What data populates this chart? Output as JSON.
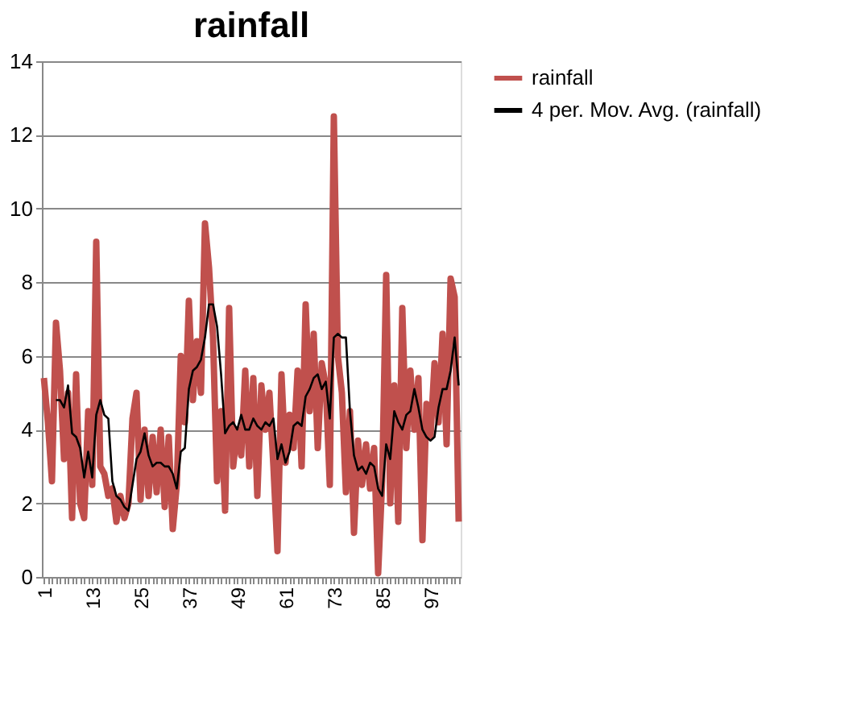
{
  "chart_data": {
    "type": "line",
    "title": "rainfall",
    "legend": "right",
    "grid": "y",
    "ylim": [
      0,
      14
    ],
    "yticks": [
      0,
      2,
      4,
      6,
      8,
      10,
      12,
      14
    ],
    "categories": [
      "1",
      null,
      null,
      null,
      null,
      null,
      null,
      null,
      null,
      null,
      null,
      null,
      "13",
      null,
      null,
      null,
      null,
      null,
      null,
      null,
      null,
      null,
      null,
      null,
      "25",
      null,
      null,
      null,
      null,
      null,
      null,
      null,
      null,
      null,
      null,
      null,
      "37",
      null,
      null,
      null,
      null,
      null,
      null,
      null,
      null,
      null,
      null,
      null,
      "49",
      null,
      null,
      null,
      null,
      null,
      null,
      null,
      null,
      null,
      null,
      null,
      "61",
      null,
      null,
      null,
      null,
      null,
      null,
      null,
      null,
      null,
      null,
      null,
      "73",
      null,
      null,
      null,
      null,
      null,
      null,
      null,
      null,
      null,
      null,
      null,
      "85",
      null,
      null,
      null,
      null,
      null,
      null,
      null,
      null,
      null,
      null,
      null,
      "97",
      null,
      null,
      null,
      null,
      null,
      null,
      null
    ],
    "series": [
      {
        "name": "rainfall",
        "color": "#c0504d",
        "values": [
          5.4,
          4.2,
          2.6,
          6.9,
          5.6,
          3.2,
          5.0,
          1.6,
          5.5,
          2.0,
          1.6,
          4.5,
          2.5,
          9.1,
          3.0,
          2.8,
          2.2,
          2.4,
          1.5,
          2.2,
          1.6,
          2.0,
          4.3,
          5.0,
          2.1,
          4.0,
          2.2,
          3.8,
          2.3,
          4.0,
          1.9,
          3.8,
          1.3,
          2.5,
          6.0,
          4.2,
          7.5,
          4.8,
          6.4,
          5.0,
          9.6,
          8.4,
          6.5,
          2.6,
          4.5,
          1.8,
          7.3,
          3.0,
          4.0,
          3.3,
          5.6,
          3.0,
          5.4,
          2.2,
          5.2,
          4.0,
          5.0,
          3.0,
          0.7,
          5.5,
          3.1,
          4.4,
          3.5,
          5.6,
          3.0,
          7.4,
          4.5,
          6.6,
          3.5,
          5.8,
          5.2,
          2.5,
          12.5,
          6.0,
          5.0,
          2.3,
          4.5,
          1.2,
          3.7,
          2.5,
          3.6,
          2.4,
          3.5,
          0.1,
          2.6,
          8.2,
          2.0,
          5.2,
          1.5,
          7.3,
          3.5,
          5.6,
          4.0,
          5.4,
          1.0,
          4.7,
          3.8,
          5.8,
          4.2,
          6.6,
          3.6,
          8.1,
          7.6,
          1.5
        ]
      },
      {
        "name": "4 per. Mov. Avg. (rainfall)",
        "color": "#000000",
        "values": [
          null,
          null,
          null,
          4.8,
          4.8,
          4.6,
          5.2,
          3.9,
          3.8,
          3.5,
          2.7,
          3.4,
          2.7,
          4.4,
          4.8,
          4.4,
          4.3,
          2.6,
          2.2,
          2.1,
          1.9,
          1.8,
          2.5,
          3.2,
          3.4,
          3.9,
          3.3,
          3.0,
          3.1,
          3.1,
          3.0,
          3.0,
          2.8,
          2.4,
          3.4,
          3.5,
          5.1,
          5.6,
          5.7,
          5.9,
          6.5,
          7.4,
          7.4,
          6.8,
          5.5,
          3.9,
          4.1,
          4.2,
          4.0,
          4.4,
          4.0,
          4.0,
          4.3,
          4.1,
          4.0,
          4.2,
          4.1,
          4.3,
          3.2,
          3.6,
          3.1,
          3.4,
          4.1,
          4.2,
          4.1,
          4.9,
          5.1,
          5.4,
          5.5,
          5.1,
          5.3,
          4.3,
          6.5,
          6.6,
          6.5,
          6.5,
          4.5,
          3.3,
          2.9,
          3.0,
          2.8,
          3.1,
          3.0,
          2.4,
          2.2,
          3.6,
          3.2,
          4.5,
          4.2,
          4.0,
          4.4,
          4.5,
          5.1,
          4.6,
          4.0,
          3.8,
          3.7,
          3.8,
          4.6,
          5.1,
          5.1,
          5.6,
          6.5,
          5.2
        ]
      }
    ]
  }
}
